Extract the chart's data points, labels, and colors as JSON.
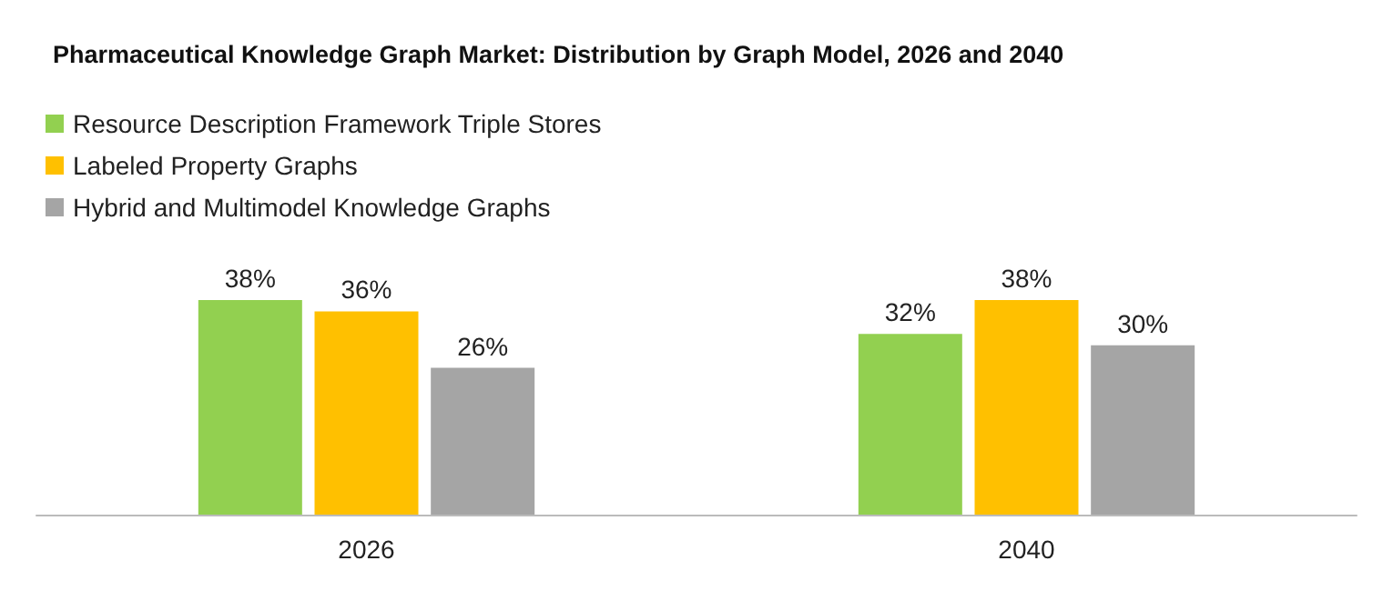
{
  "chart_data": {
    "type": "bar",
    "title": "Pharmaceutical Knowledge Graph Market: Distribution by Graph Model, 2026 and 2040",
    "categories": [
      "2026",
      "2040"
    ],
    "series": [
      {
        "name": "Resource Description Framework Triple Stores",
        "color": "#92d050",
        "values": [
          38,
          32
        ],
        "value_labels": [
          "38%",
          "32%"
        ]
      },
      {
        "name": "Labeled Property Graphs",
        "color": "#ffc000",
        "values": [
          36,
          38
        ],
        "value_labels": [
          "36%",
          "38%"
        ]
      },
      {
        "name": "Hybrid and Multimodel Knowledge Graphs",
        "color": "#a5a5a5",
        "values": [
          26,
          30
        ],
        "value_labels": [
          "26%",
          "30%"
        ]
      }
    ],
    "legend": "top left",
    "grid": false
  }
}
